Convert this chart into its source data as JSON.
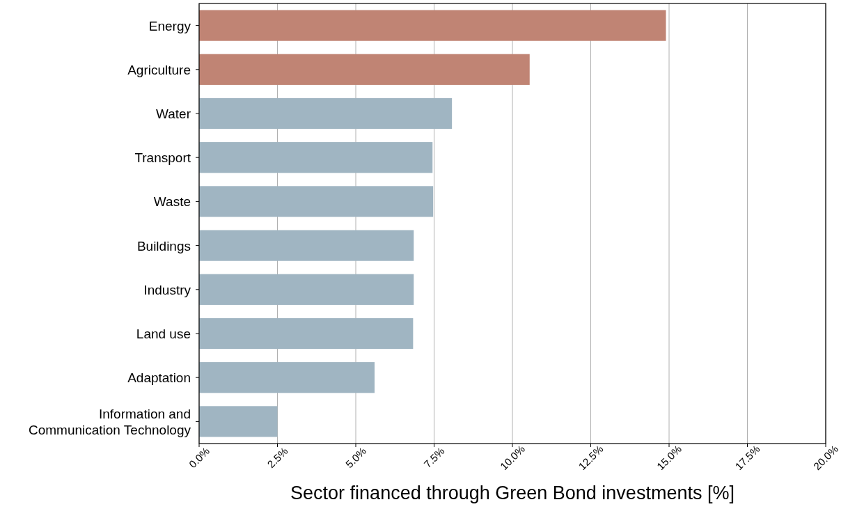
{
  "chart_data": {
    "type": "bar",
    "orientation": "horizontal",
    "xlabel": "Sector financed through Green Bond investments [%]",
    "categories": [
      "Energy",
      "Agriculture",
      "Water",
      "Transport",
      "Waste",
      "Buildings",
      "Industry",
      "Land use",
      "Adaptation",
      "Information and\nCommunication Technology"
    ],
    "values": [
      14.9,
      10.55,
      8.07,
      7.45,
      7.47,
      6.85,
      6.85,
      6.83,
      5.6,
      2.5
    ],
    "colors": [
      "#c08474",
      "#c08474",
      "#a0b5c2",
      "#a0b5c2",
      "#a0b5c2",
      "#a0b5c2",
      "#a0b5c2",
      "#a0b5c2",
      "#a0b5c2",
      "#a0b5c2"
    ],
    "xlim": [
      0,
      20
    ],
    "xticks": [
      {
        "value": 0,
        "label": "0.0%"
      },
      {
        "value": 2.5,
        "label": "2.5%"
      },
      {
        "value": 5,
        "label": "5.0%"
      },
      {
        "value": 7.5,
        "label": "7.5%"
      },
      {
        "value": 10,
        "label": "10.0%"
      },
      {
        "value": 12.5,
        "label": "12.5%"
      },
      {
        "value": 15,
        "label": "15.0%"
      },
      {
        "value": 17.5,
        "label": "17.5%"
      },
      {
        "value": 20,
        "label": "20.0%"
      }
    ],
    "grid": "x"
  }
}
